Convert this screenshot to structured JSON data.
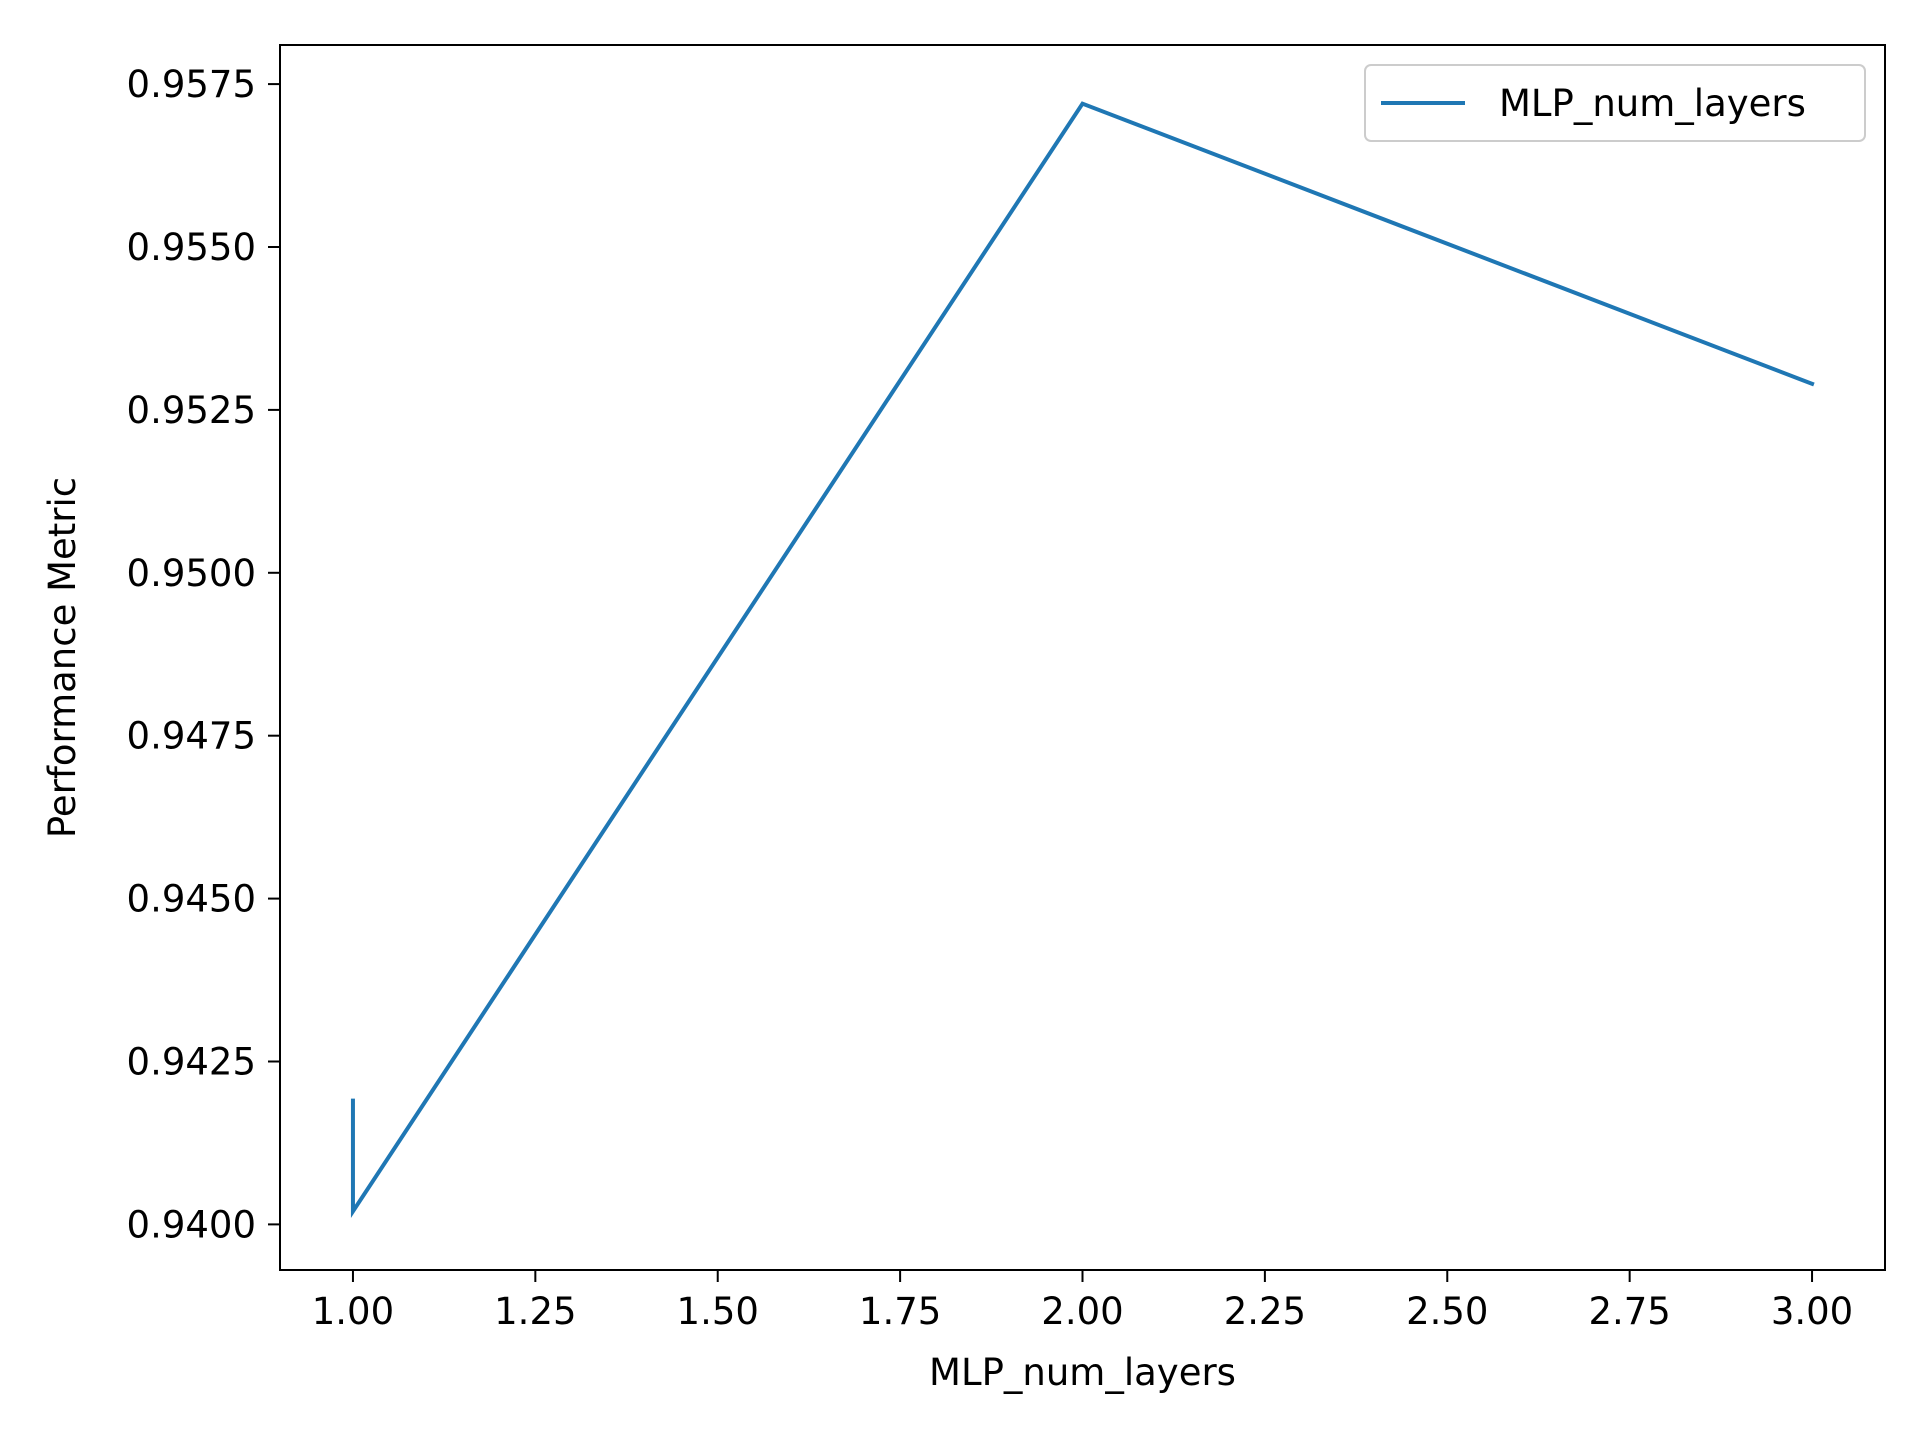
{
  "chart_data": {
    "type": "line",
    "title": "",
    "xlabel": "MLP_num_layers",
    "ylabel": "Performance Metric",
    "xlim": [
      0.9,
      3.1
    ],
    "ylim": [
      0.9393,
      0.9581
    ],
    "xticks": [
      1.0,
      1.25,
      1.5,
      1.75,
      2.0,
      2.25,
      2.5,
      2.75,
      3.0
    ],
    "xtick_labels": [
      "1.00",
      "1.25",
      "1.50",
      "1.75",
      "2.00",
      "2.25",
      "2.50",
      "2.75",
      "3.00"
    ],
    "yticks": [
      0.94,
      0.9425,
      0.945,
      0.9475,
      0.95,
      0.9525,
      0.955,
      0.9575
    ],
    "ytick_labels": [
      "0.9400",
      "0.9425",
      "0.9450",
      "0.9475",
      "0.9500",
      "0.9525",
      "0.9550",
      "0.9575"
    ],
    "grid": false,
    "legend_position": "top-right",
    "series": [
      {
        "name": "MLP_num_layers",
        "color": "#1f77b4",
        "x": [
          1.0,
          1.0,
          2.0,
          3.0
        ],
        "y": [
          0.9419,
          0.9402,
          0.9572,
          0.9529
        ]
      }
    ]
  }
}
